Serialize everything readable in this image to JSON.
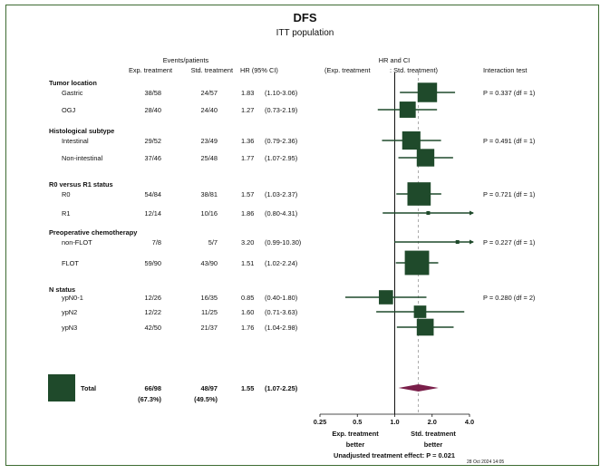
{
  "title": "DFS",
  "subtitle": "ITT population",
  "header": {
    "events_patients": "Events/patients",
    "exp_treatment": "Exp. treatment",
    "std_treatment": "Std. treatment",
    "hr_ci": "HR (95% CI)",
    "hr_and_ci": "HR and CI",
    "exp_treatment_paren": "(Exp. treatment",
    "std_treatment_paren": ": Std. treatment)",
    "interaction_test": "Interaction test"
  },
  "footer": {
    "exp_better_line1": "Exp. treatment",
    "exp_better_line2": "better",
    "std_better_line1": "Std. treatment",
    "std_better_line2": "better",
    "unadjusted": "Unadjusted treatment effect: P = 0.021",
    "timestamp": "28 Oct 2024   14:05"
  },
  "colors": {
    "marker": "#1f4a2b",
    "diamond": "#7a1f4a",
    "reference_line": "#111111",
    "overall_line": "#999999",
    "frame": "#3d6b32"
  },
  "chart_data": {
    "type": "forest",
    "x_scale": "log",
    "xlim": [
      0.25,
      4.0
    ],
    "x_ticks": [
      0.25,
      0.5,
      1.0,
      2.0,
      4.0
    ],
    "x_tick_labels": [
      "0.25",
      "0.5",
      "1.0",
      "2.0",
      "4.0"
    ],
    "reference_value": 1.0,
    "overall_estimate": 1.55,
    "groups": [
      {
        "label": "Tumor location",
        "interaction": "P = 0.337 (df = 1)",
        "rows": [
          {
            "label": "Gastric",
            "exp": "38/58",
            "std": "24/57",
            "hr": 1.83,
            "lo": 1.1,
            "hi": 3.06,
            "hr_text": "1.83",
            "ci_text": "(1.10-3.06)",
            "arrow": false
          },
          {
            "label": "OGJ",
            "exp": "28/40",
            "std": "24/40",
            "hr": 1.27,
            "lo": 0.73,
            "hi": 2.19,
            "hr_text": "1.27",
            "ci_text": "(0.73-2.19)",
            "arrow": false
          }
        ]
      },
      {
        "label": "Histological subtype",
        "interaction": "P = 0.491 (df = 1)",
        "rows": [
          {
            "label": "Intestinal",
            "exp": "29/52",
            "std": "23/49",
            "hr": 1.36,
            "lo": 0.79,
            "hi": 2.36,
            "hr_text": "1.36",
            "ci_text": "(0.79-2.36)",
            "arrow": false
          },
          {
            "label": "Non-intestinal",
            "exp": "37/46",
            "std": "25/48",
            "hr": 1.77,
            "lo": 1.07,
            "hi": 2.95,
            "hr_text": "1.77",
            "ci_text": "(1.07-2.95)",
            "arrow": false
          }
        ]
      },
      {
        "label": "R0 versus R1 status",
        "interaction": "P = 0.721 (df = 1)",
        "rows": [
          {
            "label": "R0",
            "exp": "54/84",
            "std": "38/81",
            "hr": 1.57,
            "lo": 1.03,
            "hi": 2.37,
            "hr_text": "1.57",
            "ci_text": "(1.03-2.37)",
            "arrow": false
          },
          {
            "label": "R1",
            "exp": "12/14",
            "std": "10/16",
            "hr": 1.86,
            "lo": 0.8,
            "hi": 4.31,
            "hr_text": "1.86",
            "ci_text": "(0.80-4.31)",
            "arrow": true
          }
        ]
      },
      {
        "label": "Preoperative chemotherapy",
        "interaction": "P = 0.227 (df = 1)",
        "rows": [
          {
            "label": "non-FLOT",
            "exp": "7/8",
            "std": "5/7",
            "hr": 3.2,
            "lo": 0.99,
            "hi": 10.3,
            "hr_text": "3.20",
            "ci_text": "(0.99-10.30)",
            "arrow": true
          },
          {
            "label": "FLOT",
            "exp": "59/90",
            "std": "43/90",
            "hr": 1.51,
            "lo": 1.02,
            "hi": 2.24,
            "hr_text": "1.51",
            "ci_text": "(1.02-2.24)",
            "arrow": false
          }
        ]
      },
      {
        "label": "N status",
        "interaction": "P = 0.280 (df = 2)",
        "rows": [
          {
            "label": "ypN0-1",
            "exp": "12/26",
            "std": "16/35",
            "hr": 0.85,
            "lo": 0.4,
            "hi": 1.8,
            "hr_text": "0.85",
            "ci_text": "(0.40-1.80)",
            "arrow": false
          },
          {
            "label": "ypN2",
            "exp": "12/22",
            "std": "11/25",
            "hr": 1.6,
            "lo": 0.71,
            "hi": 3.63,
            "hr_text": "1.60",
            "ci_text": "(0.71-3.63)",
            "arrow": false
          },
          {
            "label": "ypN3",
            "exp": "42/50",
            "std": "21/37",
            "hr": 1.76,
            "lo": 1.04,
            "hi": 2.98,
            "hr_text": "1.76",
            "ci_text": "(1.04-2.98)",
            "arrow": false
          }
        ]
      }
    ],
    "total": {
      "label": "Total",
      "exp": "66/98",
      "exp_pct": "(67.3%)",
      "std": "48/97",
      "std_pct": "(49.5%)",
      "hr": 1.55,
      "lo": 1.07,
      "hi": 2.25,
      "hr_text": "1.55",
      "ci_text": "(1.07-2.25)"
    }
  }
}
